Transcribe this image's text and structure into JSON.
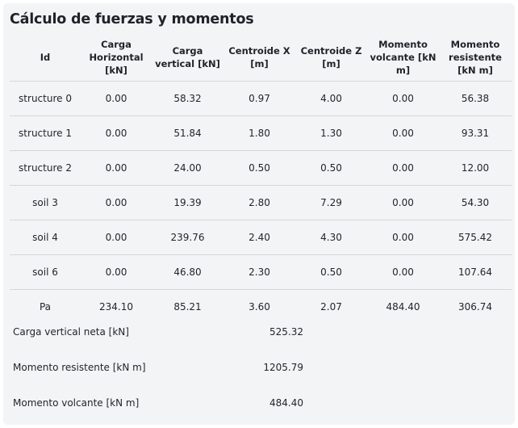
{
  "title": "Cálculo de fuerzas y momentos",
  "table": {
    "headers": [
      "Id",
      "Carga Horizontal [kN]",
      "Carga vertical [kN]",
      "Centroide X [m]",
      "Centroide Z [m]",
      "Momento volcante [kN m]",
      "Momento resistente [kN m]"
    ],
    "rows": [
      [
        "structure 0",
        "0.00",
        "58.32",
        "0.97",
        "4.00",
        "0.00",
        "56.38"
      ],
      [
        "structure 1",
        "0.00",
        "51.84",
        "1.80",
        "1.30",
        "0.00",
        "93.31"
      ],
      [
        "structure 2",
        "0.00",
        "24.00",
        "0.50",
        "0.50",
        "0.00",
        "12.00"
      ],
      [
        "soil 3",
        "0.00",
        "19.39",
        "2.80",
        "7.29",
        "0.00",
        "54.30"
      ],
      [
        "soil 4",
        "0.00",
        "239.76",
        "2.40",
        "4.30",
        "0.00",
        "575.42"
      ],
      [
        "soil 6",
        "0.00",
        "46.80",
        "2.30",
        "0.50",
        "0.00",
        "107.64"
      ],
      [
        "Pa",
        "234.10",
        "85.21",
        "3.60",
        "2.07",
        "484.40",
        "306.74"
      ]
    ]
  },
  "summary": [
    {
      "label": "Carga vertical neta [kN]",
      "value": "525.32"
    },
    {
      "label": "Momento resistente [kN m]",
      "value": "1205.79"
    },
    {
      "label": "Momento volcante [kN m]",
      "value": "484.40"
    }
  ]
}
